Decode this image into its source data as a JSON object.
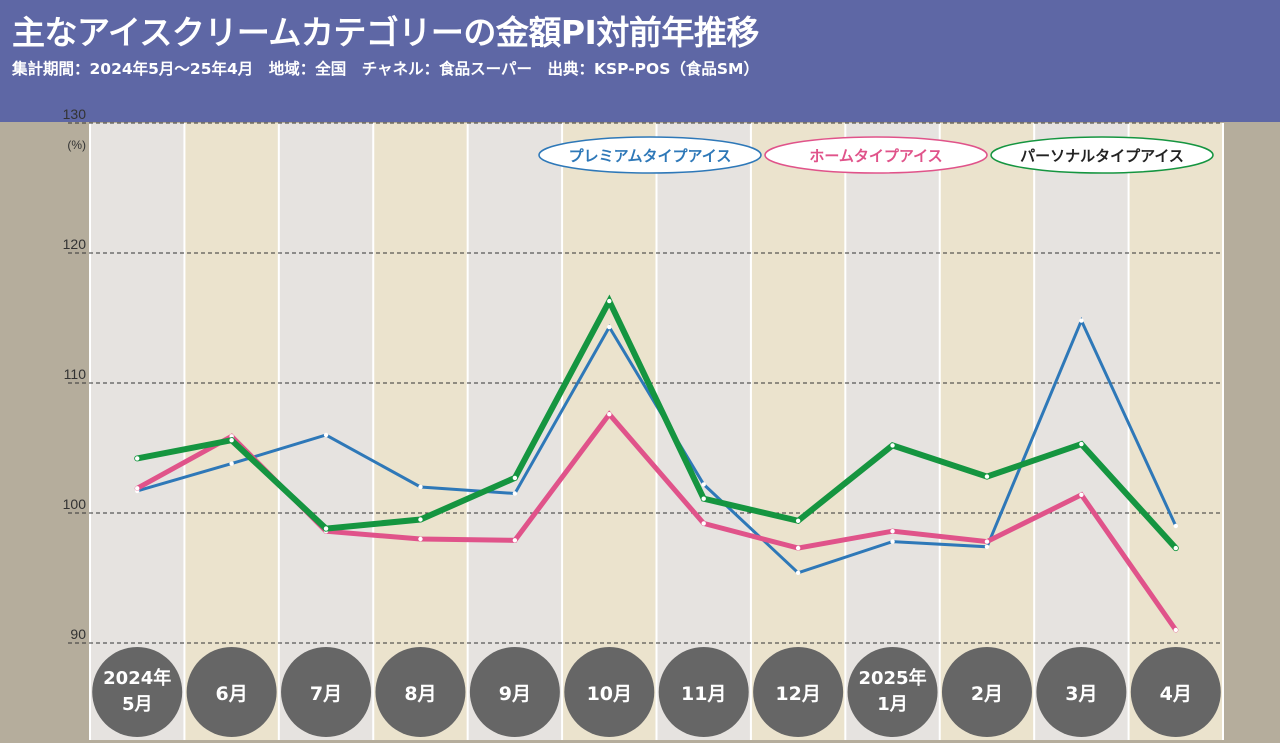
{
  "header": {
    "title": "主なアイスクリームカテゴリーの金額PI対前年推移",
    "subtitle": "集計期間：2024年5月～25年4月　地域：全国　チャネル：食品スーパー　出典：KSP-POS（食品SM）"
  },
  "colors": {
    "header_bg": "#5e67a5",
    "premium": "#2e78b8",
    "home": "#e0538a",
    "personal": "#159540",
    "band_a": "#e6e3e0",
    "band_b": "#ebe3cd",
    "month_circle": "#666666"
  },
  "chart_data": {
    "type": "line",
    "categories": [
      [
        "2024年",
        "5月"
      ],
      [
        "6月"
      ],
      [
        "7月"
      ],
      [
        "8月"
      ],
      [
        "9月"
      ],
      [
        "10月"
      ],
      [
        "11月"
      ],
      [
        "12月"
      ],
      [
        "2025年",
        "1月"
      ],
      [
        "2月"
      ],
      [
        "3月"
      ],
      [
        "4月"
      ]
    ],
    "y_unit": "(%)",
    "ylim": [
      90,
      130
    ],
    "yticks": [
      90,
      100,
      110,
      120,
      130
    ],
    "grid": "dashed horizontal",
    "legend_position": "top-right",
    "series": [
      {
        "name": "プレミアムタイプアイス",
        "color": "#2e78b8",
        "values": [
          101.7,
          103.8,
          106.0,
          102.0,
          101.5,
          114.3,
          102.2,
          95.4,
          97.8,
          97.4,
          114.8,
          99.0
        ]
      },
      {
        "name": "ホームタイプアイス",
        "color": "#e0538a",
        "values": [
          101.9,
          105.9,
          98.6,
          98.0,
          97.9,
          107.6,
          99.2,
          97.3,
          98.6,
          97.8,
          101.4,
          91.0
        ]
      },
      {
        "name": "パーソナルタイプアイス",
        "color": "#159540",
        "values": [
          104.2,
          105.6,
          98.8,
          99.5,
          102.7,
          116.3,
          101.1,
          99.4,
          105.2,
          102.8,
          105.3,
          97.3
        ]
      }
    ]
  }
}
